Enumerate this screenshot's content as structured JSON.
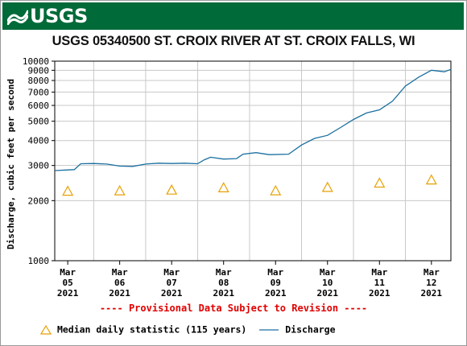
{
  "header": {
    "logo_text": "USGS"
  },
  "chart_data": {
    "type": "line",
    "title": "USGS 05340500 ST. CROIX RIVER AT ST. CROIX FALLS, WI",
    "ylabel": "Discharge, cubic feet per second",
    "xlabel": "",
    "y_scale": "log",
    "ylim": [
      1000,
      10000
    ],
    "y_ticks": [
      1000,
      2000,
      3000,
      4000,
      5000,
      6000,
      7000,
      8000,
      9000,
      10000
    ],
    "x_range_days": [
      "2021-03-04T18:00",
      "2021-03-12T09:00"
    ],
    "x_ticks": [
      {
        "date": "2021-03-05",
        "line1": "Mar",
        "line2": "05",
        "line3": "2021"
      },
      {
        "date": "2021-03-06",
        "line1": "Mar",
        "line2": "06",
        "line3": "2021"
      },
      {
        "date": "2021-03-07",
        "line1": "Mar",
        "line2": "07",
        "line3": "2021"
      },
      {
        "date": "2021-03-08",
        "line1": "Mar",
        "line2": "08",
        "line3": "2021"
      },
      {
        "date": "2021-03-09",
        "line1": "Mar",
        "line2": "09",
        "line3": "2021"
      },
      {
        "date": "2021-03-10",
        "line1": "Mar",
        "line2": "10",
        "line3": "2021"
      },
      {
        "date": "2021-03-11",
        "line1": "Mar",
        "line2": "11",
        "line3": "2021"
      },
      {
        "date": "2021-03-12",
        "line1": "Mar",
        "line2": "12",
        "line3": "2021"
      }
    ],
    "grid": true,
    "series": [
      {
        "name": "Discharge",
        "color": "#1a6fa0",
        "points": [
          [
            "2021-03-04T18:00",
            2830
          ],
          [
            "2021-03-05T00:00",
            2850
          ],
          [
            "2021-03-05T03:00",
            2860
          ],
          [
            "2021-03-05T06:00",
            3060
          ],
          [
            "2021-03-05T12:00",
            3070
          ],
          [
            "2021-03-05T18:00",
            3050
          ],
          [
            "2021-03-06T00:00",
            2980
          ],
          [
            "2021-03-06T06:00",
            2970
          ],
          [
            "2021-03-06T12:00",
            3050
          ],
          [
            "2021-03-06T18:00",
            3080
          ],
          [
            "2021-03-07T00:00",
            3070
          ],
          [
            "2021-03-07T06:00",
            3080
          ],
          [
            "2021-03-07T12:00",
            3060
          ],
          [
            "2021-03-07T15:00",
            3200
          ],
          [
            "2021-03-07T18:00",
            3300
          ],
          [
            "2021-03-08T00:00",
            3230
          ],
          [
            "2021-03-08T06:00",
            3250
          ],
          [
            "2021-03-08T09:00",
            3420
          ],
          [
            "2021-03-08T15:00",
            3480
          ],
          [
            "2021-03-08T21:00",
            3400
          ],
          [
            "2021-03-09T06:00",
            3420
          ],
          [
            "2021-03-09T12:00",
            3800
          ],
          [
            "2021-03-09T18:00",
            4100
          ],
          [
            "2021-03-10T00:00",
            4250
          ],
          [
            "2021-03-10T06:00",
            4650
          ],
          [
            "2021-03-10T12:00",
            5100
          ],
          [
            "2021-03-10T18:00",
            5500
          ],
          [
            "2021-03-11T00:00",
            5700
          ],
          [
            "2021-03-11T06:00",
            6300
          ],
          [
            "2021-03-11T12:00",
            7500
          ],
          [
            "2021-03-11T18:00",
            8300
          ],
          [
            "2021-03-12T00:00",
            9000
          ],
          [
            "2021-03-12T06:00",
            8850
          ],
          [
            "2021-03-12T09:00",
            9100
          ]
        ]
      },
      {
        "name": "Median daily statistic (115 years)",
        "color": "#e8a000",
        "points": [
          [
            "2021-03-05T00:00",
            2230
          ],
          [
            "2021-03-06T00:00",
            2240
          ],
          [
            "2021-03-07T00:00",
            2260
          ],
          [
            "2021-03-08T00:00",
            2320
          ],
          [
            "2021-03-09T00:00",
            2240
          ],
          [
            "2021-03-10T00:00",
            2330
          ],
          [
            "2021-03-11T00:00",
            2450
          ],
          [
            "2021-03-12T00:00",
            2540
          ]
        ]
      }
    ]
  },
  "footer": {
    "provisional_text": "---- Provisional Data Subject to Revision ----",
    "legend_median": "Median daily statistic (115 years)",
    "legend_discharge": "Discharge"
  }
}
